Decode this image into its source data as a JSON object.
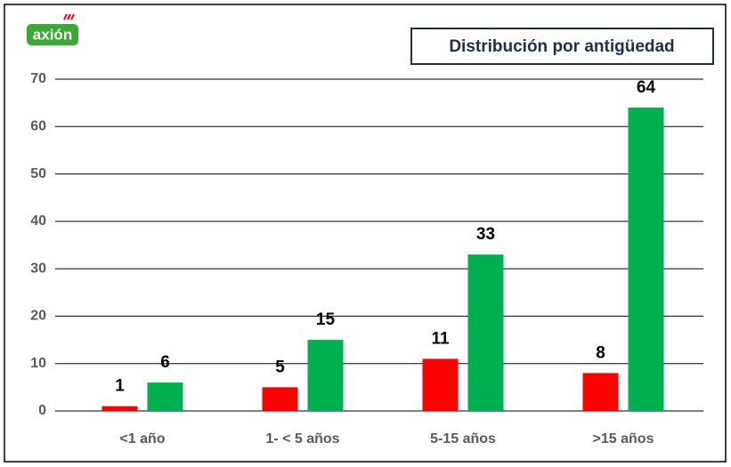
{
  "logo": "axión",
  "chart_data": {
    "type": "bar",
    "title": "Distribución por antigüedad",
    "categories": [
      "<1 año",
      "1- < 5 años",
      "5-15 años",
      ">15 años"
    ],
    "series": [
      {
        "color": "#ff0000",
        "values": [
          1,
          5,
          11,
          8
        ]
      },
      {
        "color": "#00b050",
        "values": [
          6,
          15,
          33,
          64
        ]
      }
    ],
    "ylim": [
      0,
      70
    ],
    "yticks": [
      0,
      10,
      20,
      30,
      40,
      50,
      60,
      70
    ],
    "grid": true
  }
}
